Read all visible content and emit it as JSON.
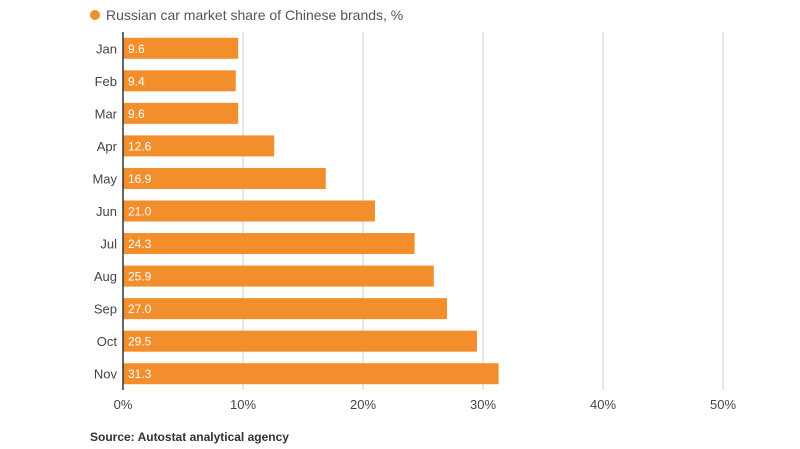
{
  "legend": {
    "label": "Russian car market share of Chinese brands, %",
    "color": "#f28e2b"
  },
  "source": "Source: Autostat analytical agency",
  "chart_data": {
    "type": "bar",
    "orientation": "horizontal",
    "categories": [
      "Jan",
      "Feb",
      "Mar",
      "Apr",
      "May",
      "Jun",
      "Jul",
      "Aug",
      "Sep",
      "Oct",
      "Nov"
    ],
    "series": [
      {
        "name": "Russian car market share of Chinese brands, %",
        "values": [
          9.6,
          9.4,
          9.6,
          12.6,
          16.9,
          21.0,
          24.3,
          25.9,
          27.0,
          29.5,
          31.3
        ]
      }
    ],
    "data_labels": [
      "9.6",
      "9.4",
      "9.6",
      "12.6",
      "16.9",
      "21.0",
      "24.3",
      "25.9",
      "27.0",
      "29.5",
      "31.3"
    ],
    "xlim": [
      0,
      50
    ],
    "xticks": [
      0,
      10,
      20,
      30,
      40,
      50
    ],
    "xtick_labels": [
      "0%",
      "10%",
      "20%",
      "30%",
      "40%",
      "50%"
    ],
    "grid": "vertical",
    "bar_color": "#f28e2b",
    "grid_color": "#cccccc",
    "axis_color": "#333333",
    "legend_position": "top-left"
  }
}
